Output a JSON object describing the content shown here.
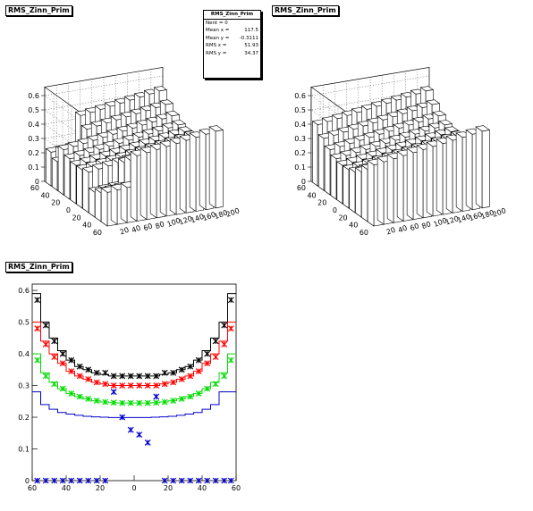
{
  "pads": [
    {
      "id": "pad1",
      "title": "RMS_Zinn_Prim"
    },
    {
      "id": "pad2",
      "title": "RMS_Zinn_Prim"
    },
    {
      "id": "pad3",
      "title": "RMS_Zinn_Prim"
    }
  ],
  "statbox": {
    "title": "RMS_Zinn_Prim",
    "rows": [
      {
        "label": "Nent = 0",
        "value": ""
      },
      {
        "label": "Mean x =",
        "value": "117.5"
      },
      {
        "label": "Mean y =",
        "value": "-0.3111"
      },
      {
        "label": "RMS x =",
        "value": "51.93"
      },
      {
        "label": "RMS y =",
        "value": "34.37"
      }
    ]
  },
  "chart_data": [
    {
      "type": "lego",
      "pad": "pad1",
      "z_ticks": [
        "0",
        "0.1",
        "0.2",
        "0.3",
        "0.4",
        "0.5",
        "0.6"
      ],
      "x_ticks": [
        "20",
        "40",
        "60",
        "80",
        "100",
        "120",
        "140",
        "160",
        "180",
        "200"
      ],
      "y_ticks": [
        "60",
        "40",
        "20",
        "0",
        "20",
        "40",
        "60"
      ],
      "zlim": [
        0,
        0.6
      ]
    },
    {
      "type": "lego",
      "pad": "pad2",
      "z_ticks": [
        "0",
        "0.1",
        "0.2",
        "0.3",
        "0.4",
        "0.5",
        "0.6"
      ],
      "x_ticks": [
        "20",
        "40",
        "60",
        "80",
        "100",
        "120",
        "140",
        "160",
        "180",
        "200"
      ],
      "y_ticks": [
        "60",
        "40",
        "20",
        "0",
        "20",
        "40",
        "60"
      ],
      "zlim": [
        0,
        0.6
      ]
    },
    {
      "type": "line",
      "pad": "pad3",
      "xlim": [
        -60,
        60
      ],
      "ylim": [
        0,
        0.62
      ],
      "x_ticks": [
        -60,
        -40,
        -20,
        0,
        20,
        40,
        60
      ],
      "x_tick_labels": [
        "60",
        "40",
        "20",
        "0",
        "20",
        "40",
        "60"
      ],
      "y_ticks": [
        0,
        0.1,
        0.2,
        0.3,
        0.4,
        0.5,
        0.6
      ],
      "y_tick_labels": [
        "0",
        "0.1",
        "0.2",
        "0.3",
        "0.4",
        "0.5",
        "0.6"
      ],
      "bin_edges": [
        -60,
        -55,
        -50,
        -45,
        -40,
        -35,
        -30,
        -25,
        -20,
        -15,
        -10,
        -5,
        0,
        5,
        10,
        15,
        20,
        25,
        30,
        35,
        40,
        45,
        50,
        55,
        60
      ],
      "histograms": [
        {
          "color": "#000000",
          "values": [
            0.59,
            0.5,
            0.45,
            0.41,
            0.38,
            0.36,
            0.35,
            0.34,
            0.335,
            0.33,
            0.33,
            0.33,
            0.33,
            0.33,
            0.33,
            0.335,
            0.34,
            0.35,
            0.36,
            0.38,
            0.41,
            0.45,
            0.5,
            0.59
          ]
        },
        {
          "color": "#ff0000",
          "values": [
            0.5,
            0.44,
            0.4,
            0.37,
            0.345,
            0.33,
            0.32,
            0.31,
            0.305,
            0.3,
            0.3,
            0.3,
            0.3,
            0.3,
            0.3,
            0.305,
            0.31,
            0.32,
            0.33,
            0.345,
            0.37,
            0.4,
            0.44,
            0.5
          ]
        },
        {
          "color": "#00dd00",
          "values": [
            0.4,
            0.34,
            0.31,
            0.29,
            0.275,
            0.265,
            0.258,
            0.252,
            0.248,
            0.246,
            0.245,
            0.245,
            0.245,
            0.245,
            0.246,
            0.248,
            0.252,
            0.258,
            0.265,
            0.275,
            0.29,
            0.31,
            0.34,
            0.4
          ]
        },
        {
          "color": "#0000cc",
          "values": [
            0.28,
            0.24,
            0.225,
            0.215,
            0.21,
            0.206,
            0.203,
            0.201,
            0.2,
            0.199,
            0.199,
            0.199,
            0.199,
            0.199,
            0.2,
            0.201,
            0.203,
            0.206,
            0.21,
            0.215,
            0.225,
            0.24,
            0.28,
            0.28
          ]
        }
      ],
      "markers": [
        {
          "color": "#000000",
          "points": [
            [
              -57,
              0.57
            ],
            [
              -52,
              0.49
            ],
            [
              -47,
              0.44
            ],
            [
              -42,
              0.4
            ],
            [
              -37,
              0.38
            ],
            [
              -32,
              0.36
            ],
            [
              -27,
              0.35
            ],
            [
              -22,
              0.34
            ],
            [
              -17,
              0.34
            ],
            [
              -12,
              0.33
            ],
            [
              -7,
              0.33
            ],
            [
              -2,
              0.33
            ],
            [
              3,
              0.33
            ],
            [
              8,
              0.33
            ],
            [
              13,
              0.33
            ],
            [
              18,
              0.34
            ],
            [
              23,
              0.34
            ],
            [
              28,
              0.35
            ],
            [
              33,
              0.36
            ],
            [
              38,
              0.38
            ],
            [
              43,
              0.4
            ],
            [
              48,
              0.44
            ],
            [
              53,
              0.49
            ],
            [
              57,
              0.57
            ]
          ]
        },
        {
          "color": "#ff0000",
          "points": [
            [
              -57,
              0.48
            ],
            [
              -52,
              0.43
            ],
            [
              -47,
              0.39
            ],
            [
              -42,
              0.37
            ],
            [
              -37,
              0.345
            ],
            [
              -32,
              0.33
            ],
            [
              -27,
              0.32
            ],
            [
              -22,
              0.31
            ],
            [
              -17,
              0.305
            ],
            [
              -12,
              0.3
            ],
            [
              -7,
              0.3
            ],
            [
              -2,
              0.3
            ],
            [
              3,
              0.3
            ],
            [
              8,
              0.3
            ],
            [
              13,
              0.3
            ],
            [
              18,
              0.305
            ],
            [
              23,
              0.31
            ],
            [
              28,
              0.32
            ],
            [
              33,
              0.33
            ],
            [
              38,
              0.345
            ],
            [
              43,
              0.37
            ],
            [
              48,
              0.39
            ],
            [
              53,
              0.43
            ],
            [
              57,
              0.48
            ]
          ]
        },
        {
          "color": "#00dd00",
          "points": [
            [
              -57,
              0.38
            ],
            [
              -52,
              0.33
            ],
            [
              -47,
              0.305
            ],
            [
              -42,
              0.29
            ],
            [
              -37,
              0.275
            ],
            [
              -32,
              0.265
            ],
            [
              -27,
              0.258
            ],
            [
              -22,
              0.252
            ],
            [
              -17,
              0.248
            ],
            [
              -12,
              0.246
            ],
            [
              -7,
              0.245
            ],
            [
              -2,
              0.245
            ],
            [
              3,
              0.245
            ],
            [
              8,
              0.245
            ],
            [
              13,
              0.246
            ],
            [
              18,
              0.248
            ],
            [
              23,
              0.252
            ],
            [
              28,
              0.258
            ],
            [
              33,
              0.265
            ],
            [
              38,
              0.275
            ],
            [
              43,
              0.29
            ],
            [
              48,
              0.305
            ],
            [
              53,
              0.33
            ],
            [
              57,
              0.38
            ]
          ]
        },
        {
          "color": "#0000cc",
          "points": [
            [
              -57,
              0.0
            ],
            [
              -52,
              0.0
            ],
            [
              -47,
              0.0
            ],
            [
              -42,
              0.0
            ],
            [
              -37,
              0.0
            ],
            [
              -32,
              0.0
            ],
            [
              -27,
              0.0
            ],
            [
              -22,
              0.0
            ],
            [
              -17,
              0.0
            ],
            [
              -12,
              0.28
            ],
            [
              -7,
              0.2
            ],
            [
              -2,
              0.16
            ],
            [
              3,
              0.145
            ],
            [
              8,
              0.12
            ],
            [
              13,
              0.265
            ],
            [
              18,
              0.0
            ],
            [
              23,
              0.0
            ],
            [
              28,
              0.0
            ],
            [
              33,
              0.0
            ],
            [
              38,
              0.0
            ],
            [
              43,
              0.0
            ],
            [
              48,
              0.0
            ],
            [
              53,
              0.0
            ],
            [
              57,
              0.0
            ]
          ]
        }
      ]
    }
  ]
}
